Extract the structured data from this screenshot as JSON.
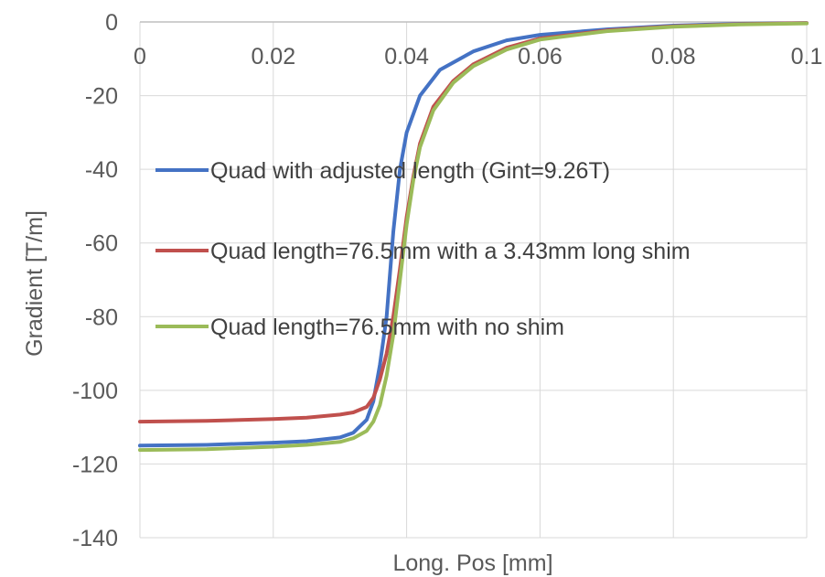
{
  "chart_data": {
    "type": "line",
    "title": "",
    "xlabel": "Long. Pos [mm]",
    "ylabel": "Gradient [T/m]",
    "xlim": [
      0,
      0.1
    ],
    "ylim": [
      -140,
      0
    ],
    "x_ticks": [
      0,
      0.02,
      0.04,
      0.06,
      0.08,
      0.1
    ],
    "x_tick_labels": [
      "0",
      "0.02",
      "0.04",
      "0.06",
      "0.08",
      "0.1"
    ],
    "y_ticks": [
      0,
      -20,
      -40,
      -60,
      -80,
      -100,
      -120,
      -140
    ],
    "y_tick_labels": [
      "0",
      "-20",
      "-40",
      "-60",
      "-80",
      "-100",
      "-120",
      "-140"
    ],
    "x_axis_at": 0,
    "grid": true,
    "legend_position": "center",
    "series": [
      {
        "name": "Quad with adjusted length (Gint=9.26T)",
        "color": "#4472C4",
        "points": [
          [
            0,
            -115
          ],
          [
            0.01,
            -114.8
          ],
          [
            0.02,
            -114.2
          ],
          [
            0.025,
            -113.8
          ],
          [
            0.03,
            -112.8
          ],
          [
            0.032,
            -111.5
          ],
          [
            0.034,
            -108
          ],
          [
            0.035,
            -103
          ],
          [
            0.036,
            -93
          ],
          [
            0.037,
            -80
          ],
          [
            0.038,
            -57
          ],
          [
            0.039,
            -40
          ],
          [
            0.04,
            -30
          ],
          [
            0.042,
            -20
          ],
          [
            0.045,
            -13
          ],
          [
            0.05,
            -8
          ],
          [
            0.055,
            -5
          ],
          [
            0.06,
            -3.5
          ],
          [
            0.07,
            -2
          ],
          [
            0.08,
            -1
          ],
          [
            0.09,
            -0.5
          ],
          [
            0.1,
            -0.3
          ]
        ]
      },
      {
        "name": "Quad length=76.5mm with a 3.43mm long shim",
        "color": "#C0504D",
        "points": [
          [
            0,
            -108.5
          ],
          [
            0.01,
            -108.3
          ],
          [
            0.02,
            -107.8
          ],
          [
            0.025,
            -107.4
          ],
          [
            0.03,
            -106.6
          ],
          [
            0.032,
            -106
          ],
          [
            0.034,
            -104.5
          ],
          [
            0.035,
            -102
          ],
          [
            0.036,
            -97
          ],
          [
            0.037,
            -90
          ],
          [
            0.038,
            -80
          ],
          [
            0.039,
            -67
          ],
          [
            0.04,
            -53
          ],
          [
            0.041,
            -42
          ],
          [
            0.042,
            -33
          ],
          [
            0.044,
            -23
          ],
          [
            0.047,
            -16
          ],
          [
            0.05,
            -11.5
          ],
          [
            0.055,
            -7
          ],
          [
            0.06,
            -4.5
          ],
          [
            0.07,
            -2.3
          ],
          [
            0.08,
            -1.2
          ],
          [
            0.09,
            -0.6
          ],
          [
            0.1,
            -0.3
          ]
        ]
      },
      {
        "name": "Quad length=76.5mm with no shim",
        "color": "#9BBB59",
        "points": [
          [
            0,
            -116.2
          ],
          [
            0.01,
            -116
          ],
          [
            0.02,
            -115.3
          ],
          [
            0.025,
            -114.8
          ],
          [
            0.03,
            -114
          ],
          [
            0.032,
            -113
          ],
          [
            0.034,
            -111
          ],
          [
            0.035,
            -108.5
          ],
          [
            0.036,
            -104
          ],
          [
            0.037,
            -96
          ],
          [
            0.038,
            -85
          ],
          [
            0.039,
            -70
          ],
          [
            0.04,
            -55
          ],
          [
            0.041,
            -43
          ],
          [
            0.042,
            -34
          ],
          [
            0.044,
            -24
          ],
          [
            0.047,
            -16.5
          ],
          [
            0.05,
            -12
          ],
          [
            0.055,
            -7.5
          ],
          [
            0.06,
            -4.8
          ],
          [
            0.07,
            -2.5
          ],
          [
            0.08,
            -1.3
          ],
          [
            0.09,
            -0.7
          ],
          [
            0.1,
            -0.4
          ]
        ]
      }
    ]
  }
}
